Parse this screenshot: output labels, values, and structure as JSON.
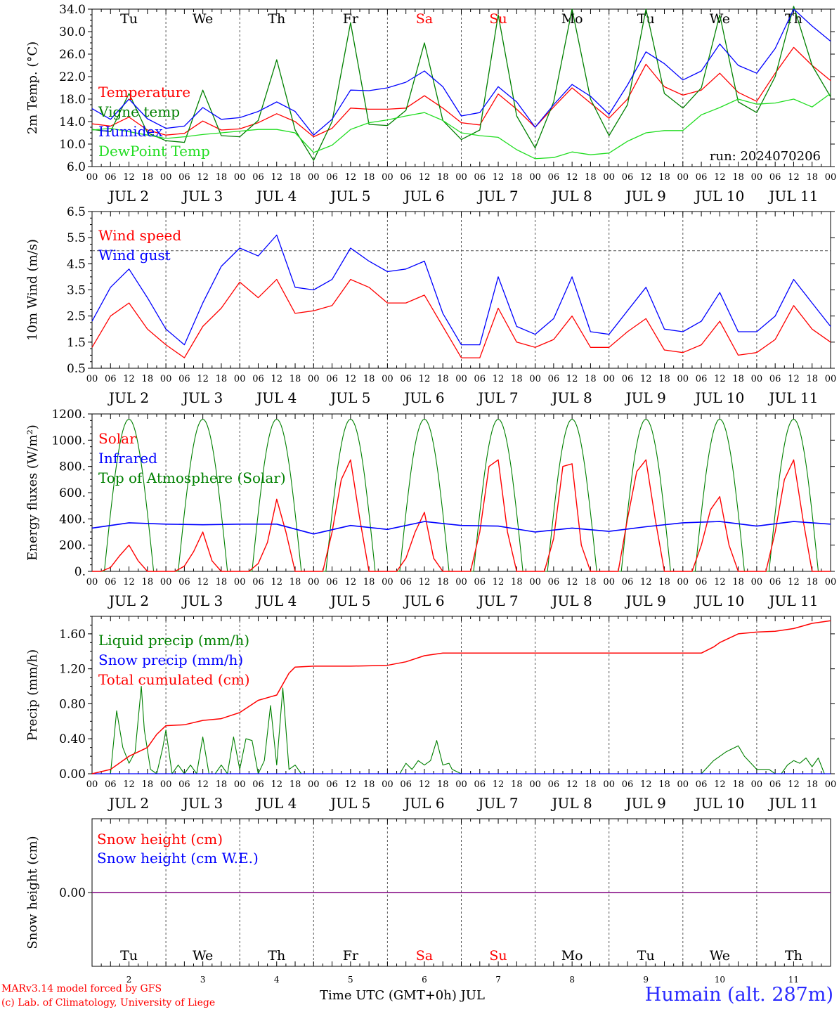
{
  "colors": {
    "red": "#ff0000",
    "dark_green": "#008000",
    "blue": "#0000ff",
    "light_green": "#22dd22",
    "purple": "#800080",
    "station": "#2a2aff"
  },
  "x_axis": {
    "hour_ticks": [
      "00",
      "06",
      "12",
      "18"
    ],
    "days": [
      "JUL  2",
      "JUL  3",
      "JUL  4",
      "JUL  5",
      "JUL  6",
      "JUL  7",
      "JUL  8",
      "JUL  9",
      "JUL 10",
      "JUL 11"
    ],
    "weekdays": [
      "Tu",
      "We",
      "Th",
      "Fr",
      "Sa",
      "Su",
      "Mo",
      "Tu",
      "We",
      "Th"
    ],
    "weekday_colors": [
      "#000000",
      "#000000",
      "#000000",
      "#000000",
      "#ff0000",
      "#ff0000",
      "#000000",
      "#000000",
      "#000000",
      "#000000"
    ],
    "day_numbers": [
      "2",
      "3",
      "4",
      "5",
      "6",
      "7",
      "8",
      "9",
      "10",
      "11"
    ]
  },
  "chart_data": [
    {
      "type": "line",
      "ylabel": "2m Temp. (°C)",
      "ylim": [
        6.0,
        34.0
      ],
      "yticks": [
        "6.0",
        "10.0",
        "14.0",
        "18.0",
        "22.0",
        "26.0",
        "30.0",
        "34.0"
      ],
      "annotation": "run: 2024070206",
      "series": [
        {
          "name": "Temperature",
          "color": "#ff0000",
          "x": [
            0,
            6,
            12,
            18,
            24,
            30,
            36,
            42,
            48,
            54,
            60,
            66,
            72,
            78,
            84,
            90,
            96,
            102,
            108,
            114,
            120,
            126,
            132,
            138,
            144,
            150,
            156,
            162,
            168,
            174,
            180,
            186,
            192,
            198,
            204,
            210,
            216,
            222,
            228,
            234,
            240
          ],
          "values": [
            13.6,
            13.2,
            14.8,
            12.5,
            11.6,
            11.9,
            14.1,
            12.5,
            12.7,
            13.8,
            15.4,
            14.0,
            11.3,
            12.8,
            16.4,
            16.2,
            16.2,
            16.4,
            18.6,
            16.4,
            13.8,
            13.4,
            18.9,
            16.2,
            13.0,
            16.6,
            20.0,
            17.3,
            14.6,
            18.0,
            24.2,
            20.2,
            18.7,
            19.6,
            22.6,
            19.2,
            17.6,
            22.6,
            27.2,
            24.0,
            21.3
          ]
        },
        {
          "name": "Vigne temp",
          "color": "#008000",
          "x": [
            0,
            6,
            12,
            18,
            24,
            30,
            36,
            42,
            48,
            54,
            60,
            66,
            72,
            78,
            84,
            90,
            96,
            102,
            108,
            114,
            120,
            126,
            132,
            138,
            144,
            150,
            156,
            162,
            168,
            174,
            180,
            186,
            192,
            198,
            204,
            210,
            216,
            222,
            228,
            234,
            240
          ],
          "values": [
            12.6,
            12.2,
            19.0,
            12.0,
            10.6,
            10.3,
            19.6,
            11.5,
            11.3,
            14.2,
            25.0,
            12.5,
            7.1,
            14.0,
            31.6,
            13.5,
            13.3,
            16.0,
            28.0,
            14.2,
            10.8,
            12.5,
            33.0,
            15.0,
            9.3,
            17.5,
            34.0,
            18.0,
            11.5,
            17.0,
            34.0,
            19.0,
            16.4,
            20.0,
            33.0,
            17.5,
            15.6,
            22.0,
            34.5,
            24.0,
            18.4
          ]
        },
        {
          "name": "Humidex",
          "color": "#0000ff",
          "x": [
            0,
            6,
            12,
            18,
            24,
            30,
            36,
            42,
            48,
            54,
            60,
            66,
            72,
            78,
            84,
            90,
            96,
            102,
            108,
            114,
            120,
            126,
            132,
            138,
            144,
            150,
            156,
            162,
            168,
            174,
            180,
            186,
            192,
            198,
            204,
            210,
            216,
            222,
            228,
            234,
            240
          ],
          "values": [
            16.3,
            14.4,
            18.0,
            14.5,
            12.8,
            13.2,
            16.5,
            14.4,
            14.7,
            15.8,
            17.5,
            15.8,
            11.6,
            14.4,
            19.6,
            19.5,
            20.0,
            21.0,
            23.0,
            20.2,
            15.0,
            15.6,
            20.2,
            17.5,
            13.0,
            17.0,
            20.6,
            18.5,
            15.3,
            20.5,
            26.4,
            24.3,
            21.4,
            23.0,
            27.8,
            24.0,
            22.6,
            27.0,
            34.0,
            31.0,
            28.3
          ]
        },
        {
          "name": "DewPoint Temp",
          "color": "#22dd22",
          "x": [
            0,
            6,
            12,
            18,
            24,
            30,
            36,
            42,
            48,
            54,
            60,
            66,
            72,
            78,
            84,
            90,
            96,
            102,
            108,
            114,
            120,
            126,
            132,
            138,
            144,
            150,
            156,
            162,
            168,
            174,
            180,
            186,
            192,
            198,
            204,
            210,
            216,
            222,
            228,
            234,
            240
          ],
          "values": [
            12.5,
            12.8,
            12.2,
            11.6,
            11.0,
            11.3,
            11.7,
            12.0,
            12.3,
            12.6,
            12.6,
            12.0,
            8.5,
            9.8,
            12.6,
            13.8,
            14.3,
            15.0,
            15.6,
            14.2,
            12.0,
            11.5,
            11.2,
            9.0,
            7.4,
            7.6,
            8.6,
            8.1,
            8.4,
            10.5,
            12.0,
            12.4,
            12.4,
            15.2,
            16.5,
            18.0,
            17.1,
            17.3,
            18.0,
            16.6,
            19.0
          ]
        }
      ]
    },
    {
      "type": "line",
      "ylabel": "10m Wind (m/s)",
      "ylim": [
        0.5,
        6.5
      ],
      "yticks": [
        "0.5",
        "1.5",
        "2.5",
        "3.5",
        "4.5",
        "5.5",
        "6.5"
      ],
      "reference_line": 5.0,
      "series": [
        {
          "name": "Wind speed",
          "color": "#ff0000",
          "x": [
            0,
            6,
            12,
            18,
            24,
            30,
            36,
            42,
            48,
            54,
            60,
            66,
            72,
            78,
            84,
            90,
            96,
            102,
            108,
            114,
            120,
            126,
            132,
            138,
            144,
            150,
            156,
            162,
            168,
            174,
            180,
            186,
            192,
            198,
            204,
            210,
            216,
            222,
            228,
            234,
            240
          ],
          "values": [
            1.3,
            2.5,
            3.0,
            2.0,
            1.4,
            0.9,
            2.1,
            2.8,
            3.8,
            3.2,
            3.9,
            2.6,
            2.7,
            2.9,
            3.9,
            3.6,
            3.0,
            3.0,
            3.3,
            2.1,
            0.9,
            0.9,
            2.8,
            1.5,
            1.3,
            1.6,
            2.5,
            1.3,
            1.3,
            1.9,
            2.4,
            1.2,
            1.1,
            1.4,
            2.3,
            1.0,
            1.1,
            1.6,
            2.9,
            2.0,
            1.5
          ]
        },
        {
          "name": "Wind gust",
          "color": "#0000ff",
          "x": [
            0,
            6,
            12,
            18,
            24,
            30,
            36,
            42,
            48,
            54,
            60,
            66,
            72,
            78,
            84,
            90,
            96,
            102,
            108,
            114,
            120,
            126,
            132,
            138,
            144,
            150,
            156,
            162,
            168,
            174,
            180,
            186,
            192,
            198,
            204,
            210,
            216,
            222,
            228,
            234,
            240
          ],
          "values": [
            2.3,
            3.6,
            4.3,
            3.2,
            2.0,
            1.4,
            3.0,
            4.4,
            5.1,
            4.8,
            5.6,
            3.6,
            3.5,
            3.9,
            5.1,
            4.6,
            4.2,
            4.3,
            4.6,
            2.6,
            1.4,
            1.4,
            4.0,
            2.1,
            1.8,
            2.4,
            4.0,
            1.9,
            1.8,
            2.7,
            3.6,
            2.0,
            1.9,
            2.3,
            3.4,
            1.9,
            1.9,
            2.5,
            3.9,
            3.0,
            2.1
          ]
        }
      ]
    },
    {
      "type": "line",
      "ylabel": "Energy fluxes (W/m²)",
      "ylim": [
        0,
        1200
      ],
      "yticks": [
        "0.",
        "200.",
        "400.",
        "600.",
        "800.",
        "1000.",
        "1200."
      ],
      "series": [
        {
          "name": "Solar",
          "color": "#ff0000",
          "x": [
            0,
            3,
            6,
            9,
            12,
            15,
            18,
            21,
            24,
            27,
            30,
            33,
            36,
            39,
            42,
            45,
            48,
            51,
            54,
            57,
            60,
            63,
            66,
            69,
            72,
            75,
            78,
            81,
            84,
            87,
            90,
            93,
            96,
            99,
            102,
            105,
            108,
            111,
            114,
            117,
            120,
            123,
            126,
            129,
            132,
            135,
            138,
            141,
            144,
            147,
            150,
            153,
            156,
            159,
            162,
            165,
            168,
            171,
            174,
            177,
            180,
            183,
            186,
            189,
            192,
            195,
            198,
            201,
            204,
            207,
            210,
            213,
            216,
            219,
            222,
            225,
            228,
            231,
            234,
            237,
            240
          ],
          "values": [
            0,
            0,
            30,
            120,
            200,
            80,
            0,
            0,
            0,
            0,
            40,
            150,
            300,
            80,
            0,
            0,
            0,
            0,
            60,
            220,
            550,
            300,
            0,
            0,
            0,
            0,
            300,
            700,
            850,
            400,
            0,
            0,
            0,
            0,
            100,
            300,
            450,
            100,
            0,
            0,
            0,
            0,
            300,
            800,
            850,
            300,
            0,
            0,
            0,
            0,
            250,
            800,
            820,
            200,
            0,
            0,
            0,
            0,
            400,
            760,
            850,
            400,
            0,
            0,
            0,
            0,
            200,
            470,
            570,
            200,
            0,
            0,
            0,
            0,
            300,
            700,
            850,
            400,
            0,
            0,
            0
          ]
        },
        {
          "name": "Infrared",
          "color": "#0000ff",
          "x": [
            0,
            12,
            24,
            36,
            48,
            60,
            72,
            84,
            96,
            108,
            120,
            132,
            144,
            156,
            168,
            180,
            192,
            204,
            216,
            228,
            240
          ],
          "values": [
            330,
            370,
            360,
            355,
            360,
            360,
            285,
            350,
            320,
            380,
            350,
            345,
            300,
            330,
            305,
            340,
            370,
            380,
            345,
            380,
            360
          ]
        },
        {
          "name": "Top of Atmosphere (Solar)",
          "color": "#008000",
          "amplitude": 1160,
          "day_start_hour": 4,
          "day_end_hour": 20
        }
      ]
    },
    {
      "type": "line",
      "ylabel": "Precip (mm/h)",
      "ylim": [
        0.0,
        1.8
      ],
      "yticks": [
        "0.00",
        "0.40",
        "0.80",
        "1.20",
        "1.60"
      ],
      "series": [
        {
          "name": "Liquid precip (mm/h)",
          "color": "#008000",
          "x": [
            0,
            3,
            6,
            8,
            10,
            12,
            14,
            16,
            17,
            19,
            21,
            23,
            24,
            26,
            28,
            30,
            32,
            34,
            36,
            38,
            40,
            42,
            44,
            46,
            48,
            50,
            52,
            54,
            56,
            58,
            60,
            62,
            64,
            66,
            68,
            70,
            72,
            96,
            100,
            102,
            104,
            106,
            108,
            110,
            112,
            114,
            116,
            117,
            120,
            144,
            192,
            198,
            202,
            206,
            210,
            212,
            216,
            220,
            222,
            224,
            226,
            228,
            230,
            232,
            234,
            236,
            238,
            240
          ],
          "values": [
            0,
            0,
            0,
            0.72,
            0.3,
            0.12,
            0.25,
            1.0,
            0.5,
            0.05,
            0,
            0.3,
            0.5,
            0,
            0.1,
            0,
            0.1,
            0,
            0.42,
            0,
            0,
            0.1,
            0,
            0.42,
            0.05,
            0.4,
            0.38,
            0,
            0.15,
            0.78,
            0.1,
            0.98,
            0.05,
            0.1,
            0,
            0,
            0,
            0,
            0,
            0.12,
            0.05,
            0.15,
            0.1,
            0.15,
            0.38,
            0.1,
            0.12,
            0.05,
            0,
            0,
            0,
            0,
            0.15,
            0.25,
            0.32,
            0.2,
            0.05,
            0.05,
            0,
            0,
            0.1,
            0.15,
            0.12,
            0.18,
            0.08,
            0.18,
            0,
            0
          ]
        },
        {
          "name": "Snow precip (mm/h)",
          "color": "#0000ff",
          "x": [
            0,
            240
          ],
          "values": [
            0,
            0
          ]
        },
        {
          "name": "Total cumulated (cm)",
          "color": "#ff0000",
          "x": [
            0,
            6,
            12,
            18,
            21,
            24,
            30,
            36,
            42,
            48,
            54,
            60,
            64,
            66,
            72,
            84,
            96,
            102,
            108,
            114,
            120,
            144,
            168,
            192,
            198,
            202,
            204,
            210,
            216,
            222,
            228,
            234,
            240
          ],
          "values": [
            0,
            0.05,
            0.2,
            0.3,
            0.45,
            0.55,
            0.56,
            0.61,
            0.63,
            0.7,
            0.84,
            0.9,
            1.15,
            1.22,
            1.23,
            1.23,
            1.24,
            1.28,
            1.35,
            1.38,
            1.38,
            1.38,
            1.38,
            1.38,
            1.38,
            1.45,
            1.5,
            1.6,
            1.62,
            1.63,
            1.66,
            1.72,
            1.75
          ]
        }
      ]
    },
    {
      "type": "line",
      "ylabel": "Snow height (cm)",
      "ylim": [
        -1,
        1
      ],
      "yticks": [
        "0.00"
      ],
      "series": [
        {
          "name": "Snow height (cm)",
          "color": "#ff0000",
          "x": [
            0,
            240
          ],
          "values": [
            0,
            0
          ]
        },
        {
          "name": "Snow height (cm W.E.)",
          "color": "#0000ff",
          "x": [
            0,
            240
          ],
          "values": [
            0,
            0
          ]
        }
      ],
      "xlabel": "Time UTC (GMT+0h) JUL"
    }
  ],
  "footer": {
    "credit_line1": "MARv3.14 model forced by GFS",
    "credit_line2": "(c) Lab. of Climatology, University of Liege",
    "station": "Humain (alt. 287m)"
  }
}
